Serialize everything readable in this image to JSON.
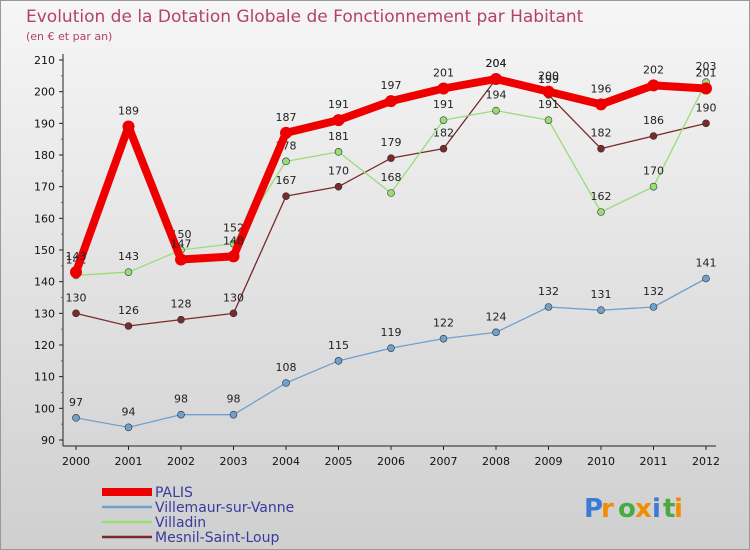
{
  "chart_data": {
    "type": "line",
    "title": "Evolution de la Dotation Globale de Fonctionnement par Habitant",
    "subtitle": "(en € et par an)",
    "x": [
      2000,
      2001,
      2002,
      2003,
      2004,
      2005,
      2006,
      2007,
      2008,
      2009,
      2010,
      2011,
      2012
    ],
    "x_tick_labels": [
      "2000",
      "2001",
      "2002",
      "2003",
      "2004",
      "2005",
      "2006",
      "2007",
      "2008",
      "2009",
      "2010",
      "2011",
      "2012"
    ],
    "ylim": [
      90,
      210
    ],
    "y_ticks": [
      90,
      100,
      110,
      120,
      130,
      140,
      150,
      160,
      170,
      180,
      190,
      200,
      210
    ],
    "y_tick_labels": [
      "90",
      "100",
      "110",
      "120",
      "130",
      "140",
      "150",
      "160",
      "170",
      "180",
      "190",
      "200",
      "210"
    ],
    "grid": false,
    "legend_position": "bottom-left",
    "series": [
      {
        "name": "PALIS",
        "color": "#ee0000",
        "values": [
          143,
          189,
          147,
          148,
          187,
          191,
          197,
          201,
          204,
          200,
          196,
          202,
          201
        ],
        "labels": [
          "143",
          "189",
          "147",
          "148",
          "187",
          "191",
          "197",
          "201",
          "204",
          "200",
          "196",
          "202",
          "201"
        ]
      },
      {
        "name": "Villemaur-sur-Vanne",
        "color": "#6fa0cf",
        "values": [
          97,
          94,
          98,
          98,
          108,
          115,
          119,
          122,
          124,
          132,
          131,
          132,
          141
        ],
        "labels": [
          "97",
          "94",
          "98",
          "98",
          "108",
          "115",
          "119",
          "122",
          "124",
          "132",
          "131",
          "132",
          "141"
        ]
      },
      {
        "name": "Villadin",
        "color": "#99dd77",
        "values": [
          142,
          143,
          150,
          152,
          178,
          181,
          168,
          191,
          194,
          191,
          162,
          170,
          203
        ],
        "labels": [
          "142",
          "143",
          "150",
          "152",
          "178",
          "181",
          "168",
          "191",
          "194",
          "191",
          "162",
          "170",
          "203"
        ]
      },
      {
        "name": "Mesnil-Saint-Loup",
        "color": "#7a2a2a",
        "values": [
          130,
          126,
          128,
          130,
          167,
          170,
          179,
          182,
          204,
          199,
          182,
          186,
          190
        ],
        "labels": [
          "130",
          "126",
          "128",
          "130",
          "167",
          "170",
          "179",
          "182",
          "204",
          "199",
          "182",
          "186",
          "190"
        ]
      }
    ]
  },
  "brand": {
    "letters": [
      "P",
      "r",
      "o",
      "x",
      "i",
      "t",
      "i"
    ],
    "colors": [
      "#3a7bd5",
      "#f28c00",
      "#49a942",
      "#f28c00",
      "#3a7bd5",
      "#49a942",
      "#f28c00"
    ]
  }
}
